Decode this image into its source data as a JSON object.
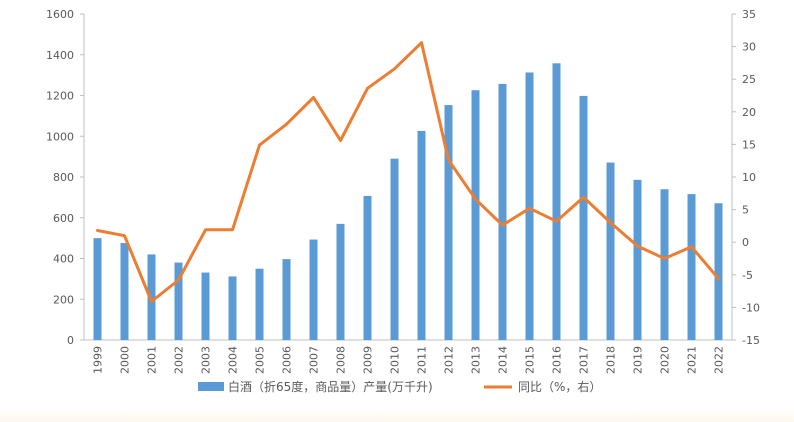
{
  "chart_data": {
    "type": "bar",
    "categories": [
      "1999",
      "2000",
      "2001",
      "2002",
      "2003",
      "2004",
      "2005",
      "2006",
      "2007",
      "2008",
      "2009",
      "2010",
      "2011",
      "2012",
      "2013",
      "2014",
      "2015",
      "2016",
      "2017",
      "2018",
      "2019",
      "2020",
      "2021",
      "2022"
    ],
    "series": [
      {
        "name": "白酒（折65度，商品量）产量(万千升)",
        "type": "bar",
        "axis": "left",
        "color": "#5B9BD5",
        "values": [
          500,
          476,
          420,
          380,
          331,
          312,
          350,
          397,
          493,
          570,
          707,
          890,
          1026,
          1153,
          1226,
          1257,
          1313,
          1358,
          1198,
          871,
          786,
          740,
          716,
          671
        ]
      },
      {
        "name": "同比（%，右）",
        "type": "line",
        "axis": "right",
        "color": "#ED7D31",
        "values": [
          1.8,
          1.0,
          -9.1,
          -5.8,
          1.9,
          1.9,
          14.9,
          18.1,
          22.2,
          15.6,
          23.6,
          26.6,
          30.6,
          12.6,
          6.6,
          2.6,
          5.2,
          3.2,
          6.9,
          3.0,
          -0.6,
          -2.5,
          -0.7,
          -5.6
        ]
      }
    ],
    "y_left": {
      "lim": [
        0,
        1600
      ],
      "ticks": [
        0,
        200,
        400,
        600,
        800,
        1000,
        1200,
        1400,
        1600
      ]
    },
    "y_right": {
      "lim": [
        -15,
        35
      ],
      "ticks": [
        -15,
        -10,
        -5,
        0,
        5,
        10,
        15,
        20,
        25,
        30,
        35
      ]
    },
    "legend": {
      "position": "bottom",
      "items": [
        {
          "label": "白酒（折65度，商品量）产量(万千升)",
          "marker": "bar"
        },
        {
          "label": "同比（%，右）",
          "marker": "line"
        }
      ]
    },
    "grid": false
  }
}
